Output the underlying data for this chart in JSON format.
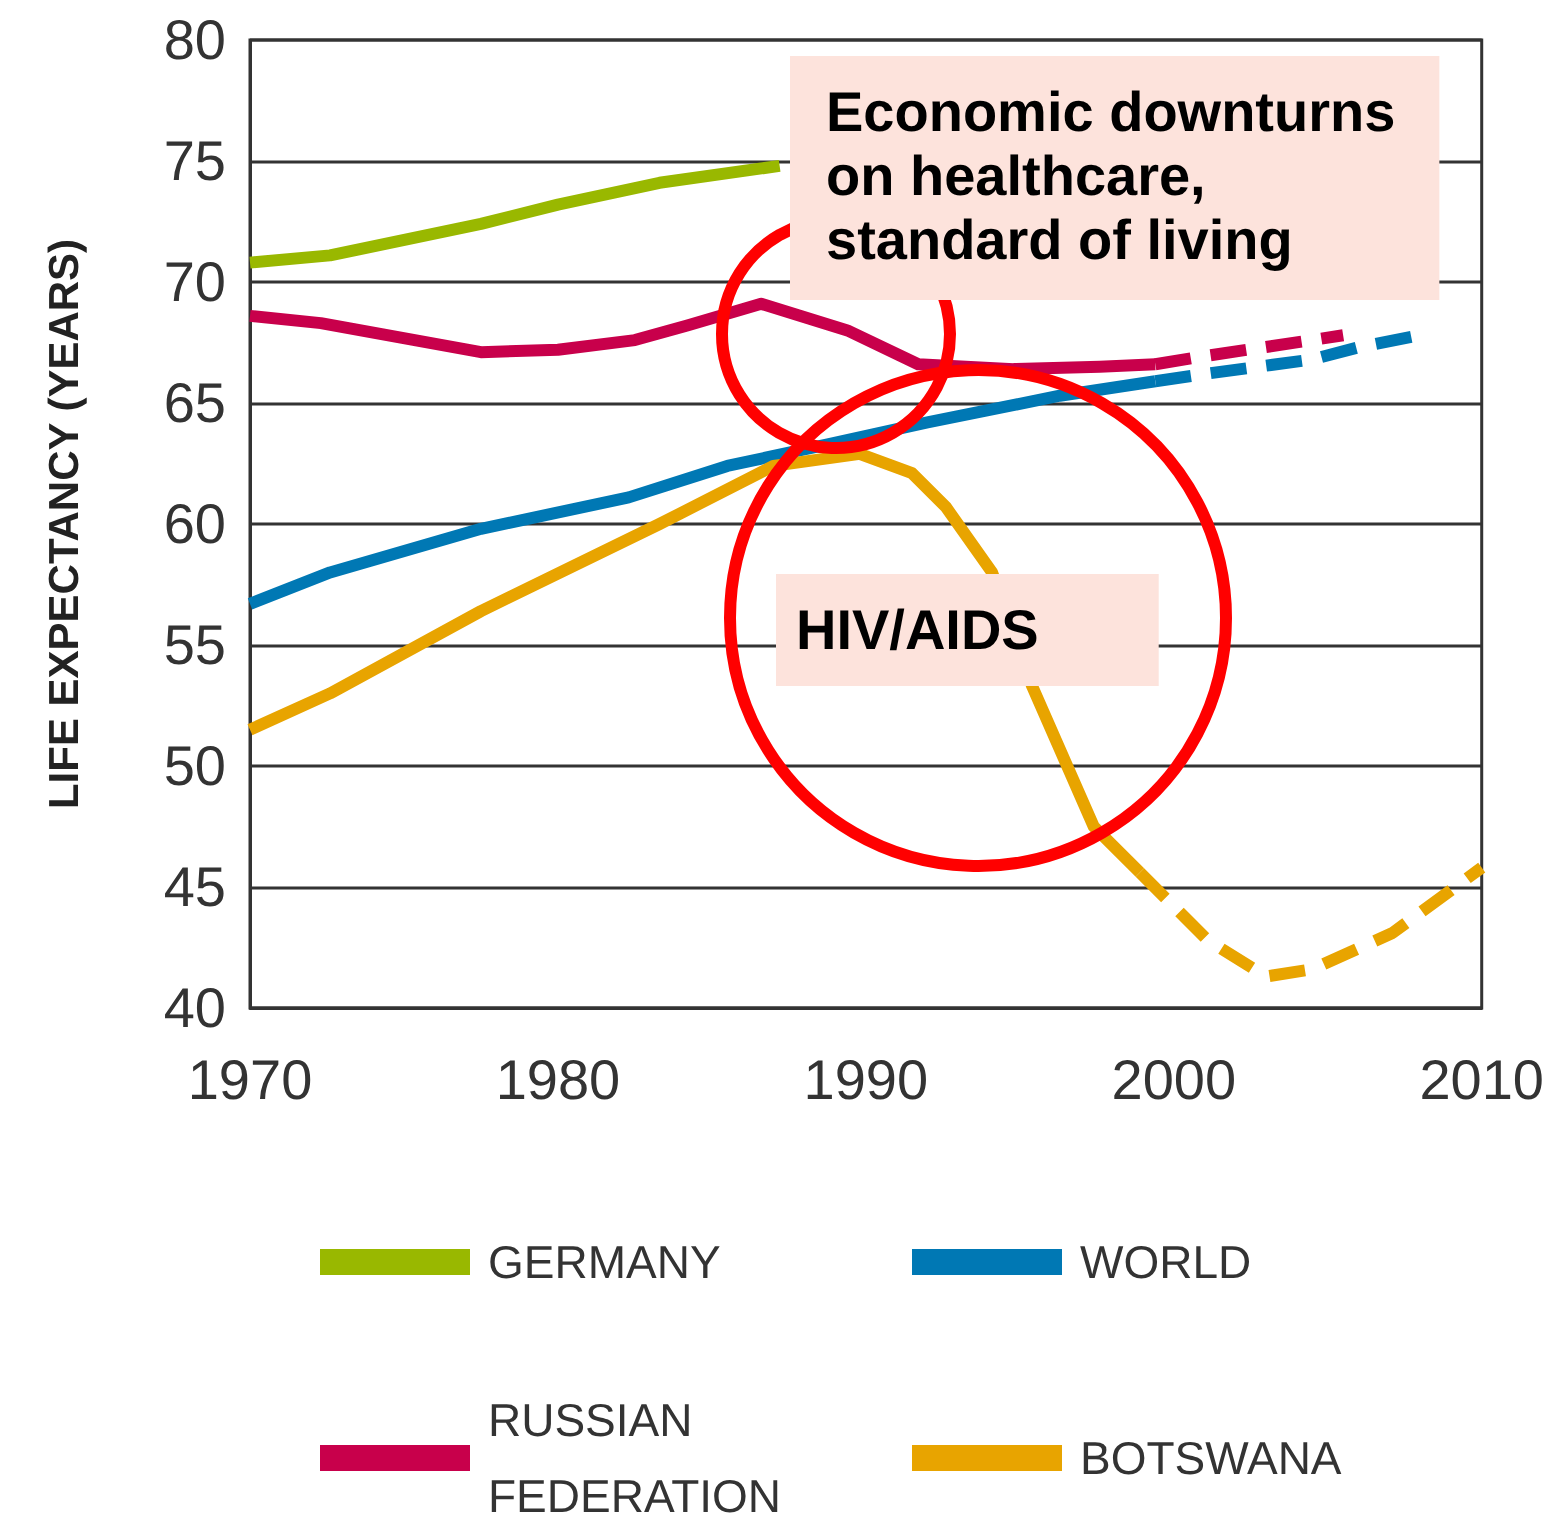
{
  "chart_data": {
    "type": "line",
    "ylabel": "LIFE EXPECTANCY (YEARS)",
    "xlim": [
      1970,
      2010
    ],
    "xticks": [
      1970,
      1980,
      1990,
      2000,
      2010
    ],
    "ylim": [
      40,
      80
    ],
    "yticks": [
      40,
      45,
      50,
      55,
      60,
      65,
      70,
      75,
      80
    ],
    "grid": "y",
    "legend": "bottom",
    "marker": "none",
    "series": [
      {
        "name": "GERMANY",
        "color": "#99b800",
        "line_style": "solid",
        "x": [
          1970,
          1972.6,
          1977.5,
          1980,
          1983.3,
          1987.2
        ],
        "values": [
          70.8,
          71.1,
          72.4,
          73.2,
          74.1,
          74.8
        ]
      },
      {
        "name": "WORLD",
        "color": "#0078b4",
        "line_style": "solid",
        "x": [
          1970,
          1972.6,
          1977.5,
          1982.3,
          1985.5,
          1988.8,
          1992,
          1996.3,
          1999.4
        ],
        "values": [
          56.7,
          58.0,
          59.8,
          61.1,
          62.4,
          63.3,
          64.2,
          65.3,
          65.9
        ]
      },
      {
        "name": "RUSSIAN FEDERATION",
        "color": "#c8004b",
        "line_style": "solid",
        "x": [
          1970,
          1972.3,
          1977.5,
          1980,
          1982.5,
          1984.2,
          1986.6,
          1989.4,
          1991.7,
          1994.8,
          1997.6,
          1999.4
        ],
        "values": [
          68.6,
          68.3,
          67.1,
          67.2,
          67.6,
          68.2,
          69.1,
          68.0,
          66.6,
          66.4,
          66.5,
          66.6
        ]
      },
      {
        "name": "BOTSWANA",
        "color": "#e8a400",
        "line_style": "solid",
        "x": [
          1970,
          1972.6,
          1977.5,
          1983.3,
          1987,
          1989.8,
          1991.5,
          1992.6,
          1994.1,
          1995.4,
          1997.4,
          1998.9
        ],
        "values": [
          51.5,
          53.0,
          56.4,
          60.0,
          62.4,
          62.9,
          62.1,
          60.7,
          58.0,
          53.3,
          47.5,
          45.6
        ]
      },
      {
        "color": "#0078b4",
        "line_style": "dashed",
        "x": [
          1999.4,
          2001,
          2004.5,
          2006,
          2008
        ],
        "values": [
          65.9,
          66.2,
          66.8,
          67.3,
          67.8
        ]
      },
      {
        "color": "#c8004b",
        "line_style": "dashed",
        "x": [
          1999.4,
          2000.8,
          2004.5,
          2005.5
        ],
        "values": [
          66.6,
          66.9,
          67.6,
          67.8
        ]
      },
      {
        "color": "#e8a400",
        "line_style": "dashed",
        "x": [
          1998.9,
          2001.1,
          2003,
          2004.5,
          2007.1,
          2010
        ],
        "values": [
          45.6,
          42.8,
          41.3,
          41.6,
          43.1,
          45.8
        ]
      }
    ],
    "annotations": [
      "Economic downturns\non healthcare,\nstandard of living",
      "HIV/AIDS"
    ]
  }
}
